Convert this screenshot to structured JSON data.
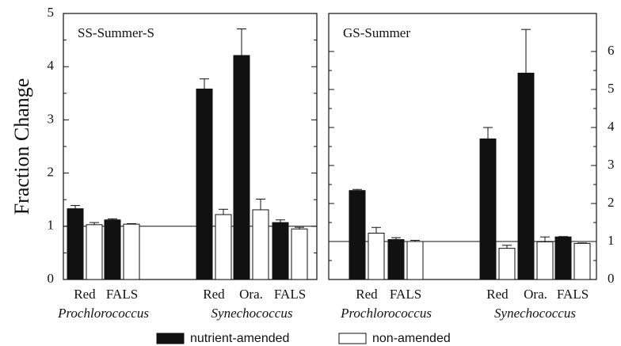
{
  "chart_data": [
    {
      "type": "bar",
      "title": "SS-Summer-S",
      "y_label": "Fraction Change",
      "y_axis_side": "left",
      "categories": [
        "Red",
        "FALS",
        "Red",
        "Ora.",
        "FALS"
      ],
      "category_groups": [
        "Prochlorococcus",
        "Prochlorococcus",
        "Synechococcus",
        "Synechococcus",
        "Synechococcus"
      ],
      "series": [
        {
          "name": "nutrient-amended",
          "color": "#111111",
          "values": [
            1.33,
            1.12,
            3.58,
            4.21,
            1.07
          ],
          "errors": [
            0.06,
            0.02,
            0.19,
            0.5,
            0.05
          ]
        },
        {
          "name": "non-amended",
          "color": "#ffffff",
          "values": [
            1.03,
            1.04,
            1.22,
            1.31,
            0.95
          ],
          "errors": [
            0.04,
            0.01,
            0.1,
            0.2,
            0.03
          ]
        }
      ],
      "ylim": [
        0,
        5
      ],
      "yticks": [
        0,
        1,
        2,
        3,
        4,
        5
      ],
      "reference_line": 1
    },
    {
      "type": "bar",
      "title": "GS-Summer",
      "y_axis_side": "right",
      "categories": [
        "Red",
        "FALS",
        "Red",
        "Ora.",
        "FALS"
      ],
      "category_groups": [
        "Prochlorococcus",
        "Prochlorococcus",
        "Synechococcus",
        "Synechococcus",
        "Synechococcus"
      ],
      "series": [
        {
          "color": "#111111",
          "values": [
            2.34,
            1.05,
            3.7,
            5.43,
            1.12
          ],
          "errors": [
            0.03,
            0.05,
            0.3,
            1.15,
            0.01
          ]
        },
        {
          "color": "#ffffff",
          "values": [
            1.22,
            1.0,
            0.82,
            0.99,
            0.95
          ],
          "errors": [
            0.15,
            0.03,
            0.08,
            0.13,
            0.01
          ]
        }
      ],
      "ylim": [
        0,
        7
      ],
      "yticks": [
        0,
        1,
        2,
        3,
        4,
        5,
        6
      ],
      "reference_line": 1
    }
  ]
}
